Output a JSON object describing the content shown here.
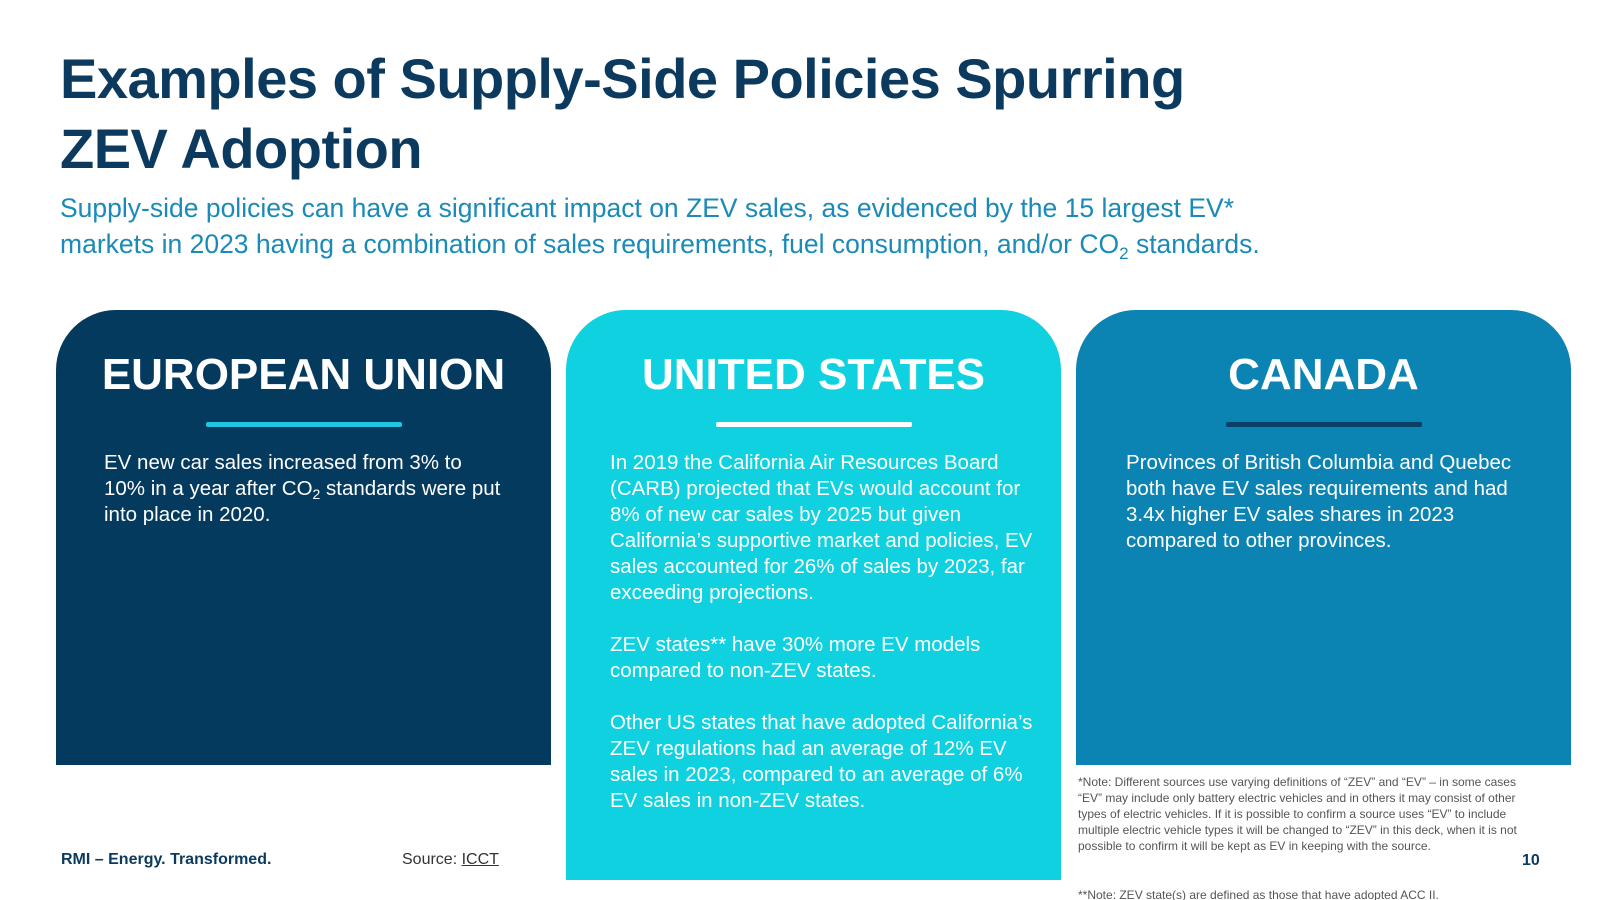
{
  "slide": {
    "title": "Examples of Supply-Side Policies Spurring ZEV Adoption",
    "subtitle": {
      "line1": "Supply-side policies can have a significant impact on ZEV sales, as evidenced by the 15 largest EV*",
      "line2_pre": "markets in 2023 having a combination of sales requirements, fuel consumption, and/or CO",
      "line2_sub": "2",
      "line2_post": " standards."
    }
  },
  "cards": {
    "eu": {
      "title": "EUROPEAN UNION",
      "body_pre": "EV new car sales increased from 3% to 10% in a year after CO",
      "body_sub": "2",
      "body_post": " standards were put into place in 2020.",
      "color": "#053a5f"
    },
    "us": {
      "title": "UNITED STATES",
      "paragraphs": [
        "In 2019 the California Air Resources Board (CARB) projected that EVs would account for 8% of new car sales by 2025 but given California’s supportive market and policies, EV sales accounted for 26% of sales by 2023, far exceeding projections.",
        "ZEV states** have 30% more EV models compared to non-ZEV states.",
        "Other US states that have adopted California’s ZEV regulations had an average of 12% EV sales in 2023, compared to an average of 6% EV sales in non-ZEV states."
      ],
      "color": "#0fd1df"
    },
    "ca": {
      "title": "CANADA",
      "body": "Provinces of British Columbia and Quebec both have EV sales requirements and had 3.4x higher EV sales shares in 2023 compared to other provinces.",
      "color": "#0c84b3"
    }
  },
  "footer": {
    "brand": "RMI – Energy. Transformed.",
    "source_label": "Source: ",
    "source_link": "ICCT",
    "note1": "*Note: Different sources use varying definitions of “ZEV” and “EV” – in some cases “EV” may include only battery electric vehicles and in others it may consist of other types of electric vehicles. If it is possible to confirm a source uses “EV” to include multiple electric vehicle types it will be changed to “ZEV” in this deck, when it is not possible to confirm it will be kept as EV in keeping with the source.",
    "note2": "**Note: ZEV state(s) are defined as those that have adopted ACC II.",
    "page_number": "10"
  }
}
